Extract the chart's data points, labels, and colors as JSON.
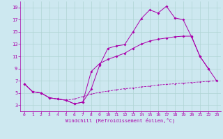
{
  "background_color": "#cde8f0",
  "grid_color": "#b0d4d4",
  "line_color": "#aa00aa",
  "xlim": [
    -0.5,
    23.5
  ],
  "ylim": [
    2,
    20
  ],
  "xticks": [
    0,
    1,
    2,
    3,
    4,
    5,
    6,
    7,
    8,
    9,
    10,
    11,
    12,
    13,
    14,
    15,
    16,
    17,
    18,
    19,
    20,
    21,
    22,
    23
  ],
  "yticks": [
    3,
    5,
    7,
    9,
    11,
    13,
    15,
    17,
    19
  ],
  "xlabel": "Windchill (Refroidissement éolien,°C)",
  "series1_x": [
    0,
    1,
    2,
    3,
    4,
    5,
    6,
    7,
    8,
    9,
    10,
    11,
    12,
    13,
    14,
    15,
    16,
    17,
    18,
    19,
    20,
    21,
    22
  ],
  "series1_y": [
    6.5,
    5.2,
    5.0,
    4.2,
    4.0,
    3.8,
    3.2,
    3.5,
    5.6,
    9.5,
    12.3,
    12.7,
    12.9,
    15.0,
    17.2,
    18.6,
    18.1,
    19.2,
    17.3,
    17.0,
    14.2,
    11.0,
    9.0
  ],
  "series2_x": [
    0,
    1,
    2,
    3,
    4,
    5,
    6,
    7,
    8,
    9,
    10,
    11,
    12,
    13,
    14,
    15,
    16,
    17,
    18,
    19,
    20,
    21,
    22,
    23
  ],
  "series2_y": [
    6.5,
    5.2,
    5.0,
    4.2,
    4.0,
    3.8,
    3.2,
    3.5,
    8.5,
    9.8,
    10.5,
    11.0,
    11.5,
    12.3,
    13.0,
    13.5,
    13.8,
    14.0,
    14.2,
    14.3,
    14.3,
    11.0,
    9.0,
    7.0
  ],
  "series3_x": [
    0,
    1,
    2,
    3,
    4,
    5,
    6,
    7,
    8,
    9,
    10,
    11,
    12,
    13,
    14,
    15,
    16,
    17,
    18,
    19,
    20,
    21,
    22,
    23
  ],
  "series3_y": [
    6.5,
    5.2,
    5.0,
    4.2,
    4.0,
    3.8,
    4.0,
    4.4,
    4.8,
    5.1,
    5.3,
    5.5,
    5.7,
    5.8,
    6.0,
    6.1,
    6.3,
    6.4,
    6.5,
    6.6,
    6.7,
    6.8,
    6.9,
    7.0
  ]
}
